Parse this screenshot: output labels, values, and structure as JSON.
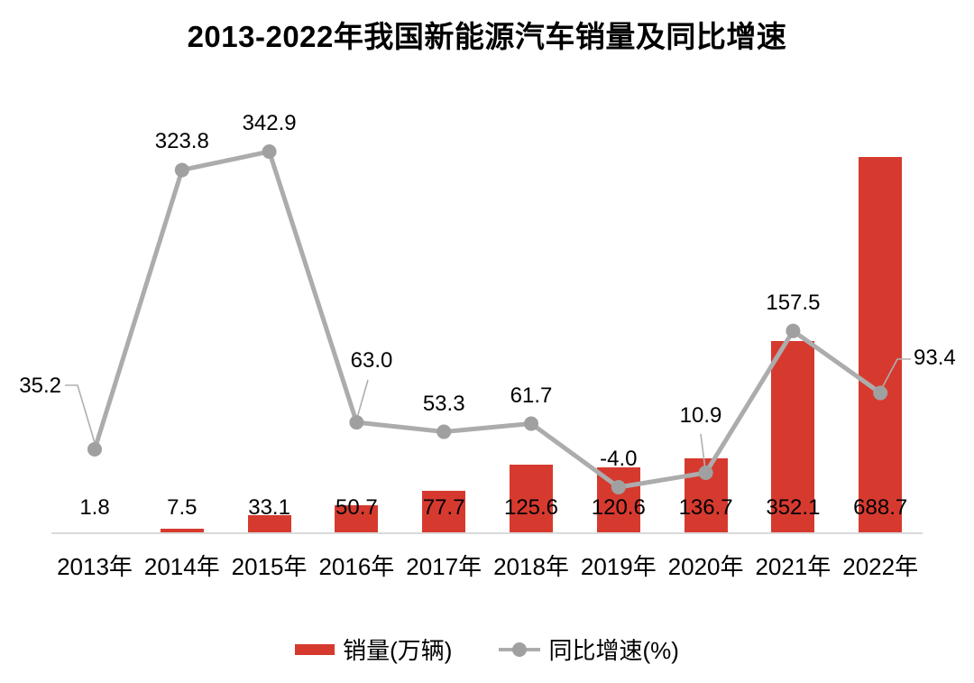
{
  "chart": {
    "title": "2013-2022年我国新能源汽车销量及同比增速",
    "legend": [
      "销量(万辆)",
      "同比增速(%)"
    ]
  },
  "chart_data": {
    "type": "bar",
    "subtype": "combo-bar-line",
    "title": "2013-2022年我国新能源汽车销量及同比增速",
    "categories": [
      "2013年",
      "2014年",
      "2015年",
      "2016年",
      "2017年",
      "2018年",
      "2019年",
      "2020年",
      "2021年",
      "2022年"
    ],
    "series": [
      {
        "name": "销量(万辆)",
        "type": "bar",
        "color": "#D63A2F",
        "values": [
          1.8,
          7.5,
          33.1,
          50.7,
          77.7,
          125.6,
          120.6,
          136.7,
          352.1,
          688.7
        ],
        "labels": [
          "1.8",
          "7.5",
          "33.1",
          "50.7",
          "77.7",
          "125.6",
          "120.6",
          "136.7",
          "352.1",
          "688.7"
        ]
      },
      {
        "name": "同比增速(%)",
        "type": "line",
        "color": "#ACACAC",
        "marker_color": "#A0A0A0",
        "values": [
          35.2,
          323.8,
          342.9,
          63.0,
          53.3,
          61.7,
          -4.0,
          10.9,
          157.5,
          93.4
        ],
        "labels": [
          "35.2",
          "323.8",
          "342.9",
          "63.0",
          "53.3",
          "61.7",
          "-4.0",
          "10.9",
          "157.5",
          "93.4"
        ],
        "callout_labels": [
          "35.2",
          "63.0",
          "10.9",
          "93.4"
        ]
      }
    ],
    "xlabel": "",
    "ylabel": "",
    "grid": false,
    "y_axis_visible": false,
    "x_axis_visible": true,
    "data_labels": true,
    "legend_position": "bottom"
  },
  "colors": {
    "bar": "#D63A2F",
    "line": "#ACACAC",
    "axis": "#DADADA",
    "leader": "#AFAFAF",
    "text": "#000000",
    "background": "#FFFFFF"
  }
}
